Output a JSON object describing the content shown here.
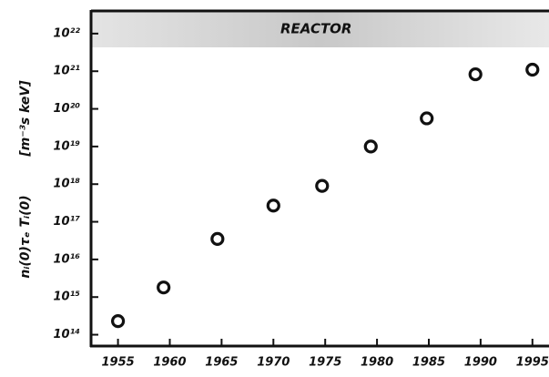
{
  "chart_data": {
    "type": "scatter",
    "y_label": "nᵢ(0)τₑ Tᵢ(0)",
    "y_unit": "[m⁻³s  keV]",
    "annotation": "REACTOR",
    "log_y": true,
    "color": "#111111",
    "x": [
      1955,
      1959.4,
      1964.6,
      1970,
      1974.7,
      1979.4,
      1984.8,
      1989.5,
      1995
    ],
    "values": [
      230000000000000.0,
      1800000000000000.0,
      3.5e+16,
      2.7e+17,
      9e+17,
      1e+19,
      5.6e+19,
      8.3e+20,
      1.1e+21
    ],
    "xlim": [
      1952.4,
      1996.6
    ],
    "xticks": [
      1955,
      1960,
      1965,
      1970,
      1975,
      1980,
      1985,
      1990,
      1995
    ],
    "ylim": [
      50000000000000.0,
      4e+22
    ],
    "yticks": [
      {
        "value": 100000000000000.0,
        "label": "10¹⁴"
      },
      {
        "value": 1000000000000000.0,
        "label": "10¹⁵"
      },
      {
        "value": 1e+16,
        "label": "10¹⁶"
      },
      {
        "value": 1e+17,
        "label": "10¹⁷"
      },
      {
        "value": 1e+18,
        "label": "10¹⁸"
      },
      {
        "value": 1e+19,
        "label": "10¹⁹"
      },
      {
        "value": 1e+20,
        "label": "10²⁰"
      },
      {
        "value": 1e+21,
        "label": "10²¹"
      },
      {
        "value": 1e+22,
        "label": "10²²"
      }
    ]
  }
}
